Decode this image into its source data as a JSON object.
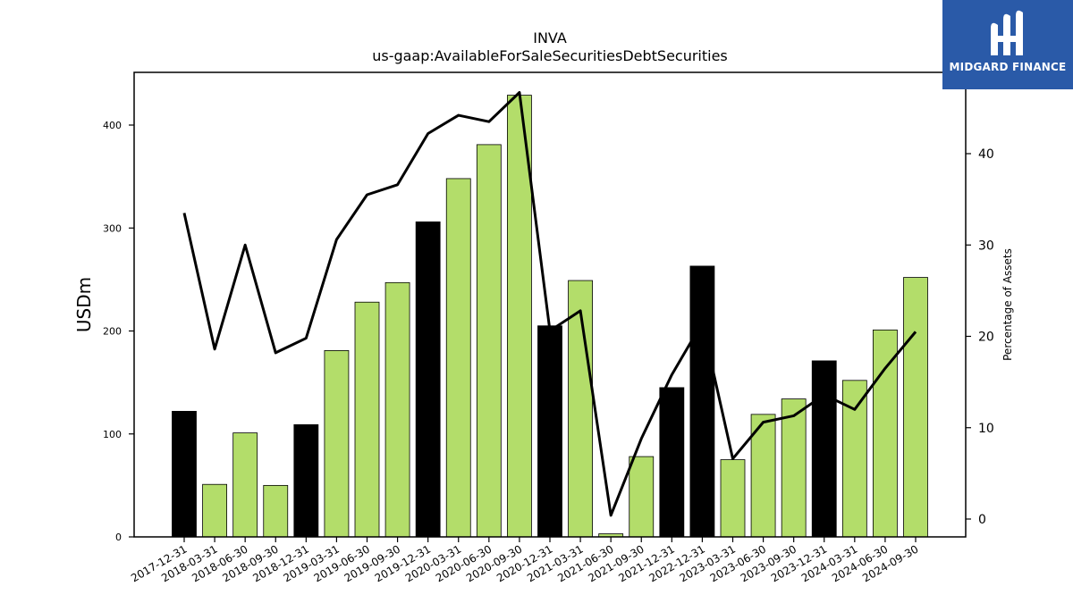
{
  "logo": {
    "text": "MIDGARD FINANCE"
  },
  "chart_data": {
    "type": "bar",
    "title": "INVA",
    "subtitle": "us-gaap:AvailableForSaleSecuritiesDebtSecurities",
    "ylabel": "USDm",
    "y2label": "Percentage of Assets",
    "ylim": [
      0,
      450
    ],
    "y2lim": [
      -2,
      49
    ],
    "yticks": [
      0,
      100,
      200,
      300,
      400
    ],
    "y2ticks": [
      0,
      10,
      20,
      30,
      40
    ],
    "categories": [
      "2017-12-31",
      "2018-03-31",
      "2018-06-30",
      "2018-09-30",
      "2018-12-31",
      "2019-03-31",
      "2019-06-30",
      "2019-09-30",
      "2019-12-31",
      "2020-03-31",
      "2020-06-30",
      "2020-09-30",
      "2020-12-31",
      "2021-03-31",
      "2021-06-30",
      "2021-09-30",
      "2021-12-31",
      "2022-12-31",
      "2023-03-31",
      "2023-06-30",
      "2023-09-30",
      "2023-12-31",
      "2024-03-31",
      "2024-06-30",
      "2024-09-30"
    ],
    "series": [
      {
        "type": "bar",
        "values": [
          122,
          51,
          101,
          50,
          109,
          181,
          228,
          247,
          306,
          348,
          381,
          429,
          205,
          249,
          3,
          78,
          145,
          263,
          75,
          119,
          134,
          171,
          152,
          201,
          252
        ]
      },
      {
        "type": "line",
        "axis": "right",
        "values": [
          33.5,
          18.6,
          30.0,
          18.2,
          19.8,
          30.6,
          35.5,
          36.6,
          42.2,
          44.2,
          43.5,
          46.7,
          20.6,
          22.8,
          0.4,
          8.8,
          15.8,
          21.5,
          6.6,
          10.6,
          11.3,
          13.6,
          12.0,
          16.5,
          20.5
        ]
      }
    ],
    "bar_colors": {
      "year_end": "#000000",
      "quarter": "#b3dd6a"
    },
    "grid": false,
    "legend": "none"
  }
}
